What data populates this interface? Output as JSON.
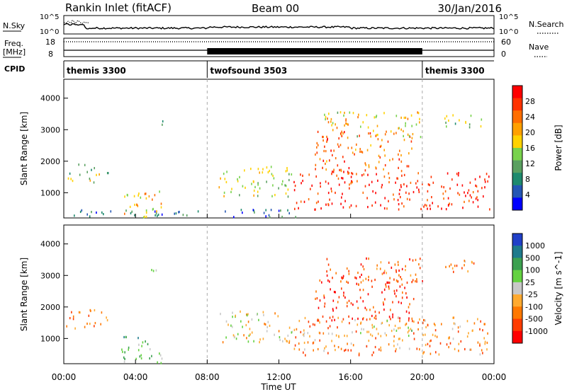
{
  "header": {
    "station": "Rankin Inlet (fitACF)",
    "beam": "Beam 00",
    "date": "30/Jan/2016"
  },
  "noise_panel": {
    "left_label": "N.Sky",
    "right_label": "N.Search",
    "left_ticks": [
      "10^5",
      "10^0"
    ],
    "right_ticks": [
      "10^5",
      "10^0"
    ]
  },
  "freq_panel": {
    "left_label_line1": "Freq.",
    "left_label_line2": "[MHz]",
    "left_ticks": [
      "18",
      "8"
    ],
    "right_label": "Nave",
    "right_ticks": [
      "60",
      "0"
    ]
  },
  "cpid_panel": {
    "label": "CPID",
    "programs": [
      {
        "name": "themis 3300",
        "start_h": 0.0,
        "end_h": 8.0
      },
      {
        "name": "twofsound 3503",
        "start_h": 8.0,
        "end_h": 20.0
      },
      {
        "name": "themis 3300",
        "start_h": 20.0,
        "end_h": 24.0
      }
    ]
  },
  "time_axis": {
    "label": "Time UT",
    "ticks": [
      "00:00",
      "04:00",
      "08:00",
      "12:00",
      "16:00",
      "20:00",
      "00:00"
    ]
  },
  "colors": {
    "power_scale": [
      "#0000ff",
      "#2456b4",
      "#1e8a6e",
      "#5aa060",
      "#78d24c",
      "#ffd200",
      "#ffa000",
      "#ff6e00",
      "#ff3200",
      "#ff0000"
    ],
    "velocity_scale": [
      "#ff0000",
      "#ff3c00",
      "#ff7800",
      "#ffaa30",
      "#c8c8c8",
      "#64d240",
      "#3ca050",
      "#1e7a8c",
      "#2040c8"
    ]
  },
  "chart_data": [
    {
      "type": "heatmap",
      "name": "power",
      "ylabel": "Slant Range [km]",
      "yticks": [
        1000,
        2000,
        3000,
        4000
      ],
      "ylim": [
        200,
        4600
      ],
      "xlim": [
        0,
        24
      ],
      "colorbar": {
        "label": "Power [dB]",
        "tick_labels": [
          "28",
          "24",
          "20",
          "16",
          "12",
          "8",
          "4"
        ],
        "range": [
          0,
          32
        ]
      },
      "regions": [
        {
          "t0": 0.1,
          "t1": 2.1,
          "r0": 1350,
          "r1": 1950,
          "level": 0.45
        },
        {
          "t0": 2.3,
          "t1": 2.6,
          "r0": 1400,
          "r1": 1800,
          "level": 0.4
        },
        {
          "t0": 3.2,
          "t1": 5.5,
          "r0": 250,
          "r1": 1100,
          "level": 0.6
        },
        {
          "t0": 4.6,
          "t1": 5.6,
          "r0": 3150,
          "r1": 3300,
          "level": 0.3
        },
        {
          "t0": 8.6,
          "t1": 12.8,
          "r0": 900,
          "r1": 1900,
          "level": 0.5
        },
        {
          "t0": 12.8,
          "t1": 23.9,
          "r0": 500,
          "r1": 1700,
          "level": 0.9
        },
        {
          "t0": 14.0,
          "t1": 19.5,
          "r0": 1600,
          "r1": 3000,
          "level": 0.75
        },
        {
          "t0": 14.5,
          "t1": 20.0,
          "r0": 2800,
          "r1": 3600,
          "level": 0.55
        },
        {
          "t0": 21.0,
          "t1": 23.5,
          "r0": 3100,
          "r1": 3500,
          "level": 0.4
        },
        {
          "t0": 0.5,
          "t1": 13.0,
          "r0": 250,
          "r1": 500,
          "level": 0.2
        }
      ]
    },
    {
      "type": "heatmap",
      "name": "velocity",
      "ylabel": "Slant Range [km]",
      "yticks": [
        1000,
        2000,
        3000,
        4000
      ],
      "ylim": [
        200,
        4600
      ],
      "xlim": [
        0,
        24
      ],
      "colorbar": {
        "label": "Velocity [m s^-1]",
        "tick_labels": [
          "1000",
          "500",
          "100",
          "25",
          "-25",
          "-100",
          "-500",
          "-1000"
        ],
        "range": [
          -1000,
          1000
        ]
      },
      "regions": [
        {
          "t0": 0.1,
          "t1": 2.1,
          "r0": 1350,
          "r1": 1950,
          "level": 0.25
        },
        {
          "t0": 2.3,
          "t1": 2.6,
          "r0": 1400,
          "r1": 1800,
          "level": 0.3
        },
        {
          "t0": 3.2,
          "t1": 5.5,
          "r0": 250,
          "r1": 1100,
          "level": 0.65
        },
        {
          "t0": 4.6,
          "t1": 5.6,
          "r0": 3150,
          "r1": 3300,
          "level": 0.6
        },
        {
          "t0": 8.6,
          "t1": 12.8,
          "r0": 900,
          "r1": 1900,
          "level": 0.45
        },
        {
          "t0": 12.8,
          "t1": 23.9,
          "r0": 500,
          "r1": 1700,
          "level": 0.3
        },
        {
          "t0": 16.5,
          "t1": 19.5,
          "r0": 1100,
          "r1": 1600,
          "level": 0.5
        },
        {
          "t0": 14.0,
          "t1": 19.5,
          "r0": 1600,
          "r1": 3000,
          "level": 0.15
        },
        {
          "t0": 14.5,
          "t1": 20.0,
          "r0": 2800,
          "r1": 3600,
          "level": 0.2
        },
        {
          "t0": 21.0,
          "t1": 23.5,
          "r0": 3100,
          "r1": 3500,
          "level": 0.3
        }
      ]
    }
  ]
}
